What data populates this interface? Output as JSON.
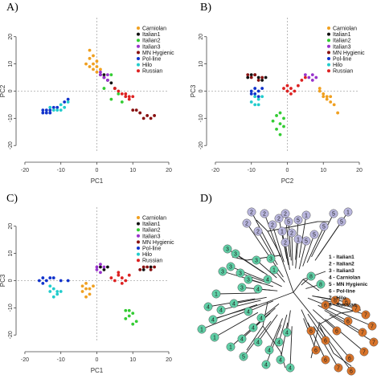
{
  "colors": {
    "Carniolan": "#f0a020",
    "Italian1": "#111111",
    "Italian2": "#33cc33",
    "Italian3": "#9933cc",
    "MN Hygienic": "#881111",
    "Pol-line": "#1133cc",
    "Hilo": "#22cccc",
    "Russian": "#dd2222",
    "tree_lilac": "#b9b6de",
    "tree_teal": "#5fcfa6",
    "tree_orange": "#d9742a"
  },
  "legend_order": [
    "Carniolan",
    "Italian1",
    "Italian2",
    "Italian3",
    "MN Hygienic",
    "Pol-line",
    "Hilo",
    "Russian"
  ],
  "panels": {
    "A": {
      "letter": "A)"
    },
    "B": {
      "letter": "B)"
    },
    "C": {
      "letter": "C)"
    },
    "D": {
      "letter": "D)"
    }
  },
  "chart_data": [
    {
      "panel": "A",
      "type": "scatter",
      "xlabel": "PC1",
      "ylabel": "PC2",
      "xlim": [
        -22,
        20
      ],
      "ylim": [
        -22,
        27
      ],
      "xticks": [
        -20,
        -10,
        0,
        10,
        20
      ],
      "yticks": [
        -20,
        -10,
        0,
        10,
        20
      ],
      "legend_position": "top-right",
      "reference_lines": "dashed at x=0 and y=0",
      "series": [
        {
          "name": "Carniolan",
          "points": [
            [
              -2,
              15
            ],
            [
              -1,
              13
            ],
            [
              -2,
              12
            ],
            [
              0,
              11
            ],
            [
              -1,
              10
            ],
            [
              -2,
              9
            ],
            [
              0,
              9
            ],
            [
              -1,
              8
            ],
            [
              1,
              8
            ],
            [
              0,
              7
            ],
            [
              -3,
              10
            ]
          ]
        },
        {
          "name": "Italian1",
          "points": [
            [
              1,
              6
            ],
            [
              2,
              5
            ],
            [
              3,
              4
            ],
            [
              4,
              3
            ],
            [
              5,
              1
            ],
            [
              2,
              6
            ]
          ]
        },
        {
          "name": "Italian2",
          "points": [
            [
              4,
              6
            ],
            [
              2,
              1
            ],
            [
              6,
              -1
            ],
            [
              4,
              -3
            ],
            [
              7,
              -4
            ]
          ]
        },
        {
          "name": "Italian3",
          "points": [
            [
              1,
              7
            ],
            [
              1,
              6
            ],
            [
              2,
              5
            ],
            [
              3,
              6
            ],
            [
              3,
              4
            ]
          ]
        },
        {
          "name": "MN Hygienic",
          "points": [
            [
              10,
              -7
            ],
            [
              12,
              -8
            ],
            [
              14,
              -9
            ],
            [
              15,
              -10
            ],
            [
              16,
              -9
            ],
            [
              13,
              -10
            ],
            [
              11,
              -7
            ]
          ]
        },
        {
          "name": "Pol-line",
          "points": [
            [
              -14,
              -7
            ],
            [
              -15,
              -8
            ],
            [
              -13,
              -7
            ],
            [
              -12,
              -6
            ],
            [
              -14,
              -8
            ],
            [
              -15,
              -7
            ],
            [
              -11,
              -6
            ],
            [
              -9,
              -4
            ],
            [
              -13,
              -8
            ],
            [
              -8,
              -3
            ]
          ]
        },
        {
          "name": "Hilo",
          "points": [
            [
              -10,
              -5
            ],
            [
              -11,
              -7
            ],
            [
              -12,
              -7
            ],
            [
              -9,
              -6
            ],
            [
              -10,
              -7
            ],
            [
              -8,
              -4
            ],
            [
              -13,
              -6
            ]
          ]
        },
        {
          "name": "Russian",
          "points": [
            [
              6,
              0
            ],
            [
              7,
              -1
            ],
            [
              8,
              -2
            ],
            [
              9,
              -2
            ],
            [
              10,
              -2
            ],
            [
              8,
              -1
            ],
            [
              9,
              -3
            ],
            [
              5,
              1
            ]
          ]
        }
      ]
    },
    {
      "panel": "B",
      "type": "scatter",
      "xlabel": "PC2",
      "ylabel": "PC3",
      "xlim": [
        -22,
        20
      ],
      "ylim": [
        -22,
        27
      ],
      "xticks": [
        -20,
        -10,
        0,
        10,
        20
      ],
      "yticks": [
        -20,
        -10,
        0,
        10,
        20
      ],
      "legend_position": "top-right",
      "reference_lines": "dashed at x=0 and y=0",
      "series": [
        {
          "name": "Carniolan",
          "points": [
            [
              9,
              0
            ],
            [
              10,
              -2
            ],
            [
              11,
              -3
            ],
            [
              12,
              -2
            ],
            [
              13,
              -5
            ],
            [
              14,
              -8
            ],
            [
              10,
              -1
            ],
            [
              11,
              -2
            ],
            [
              12,
              -4
            ],
            [
              9,
              1
            ]
          ]
        },
        {
          "name": "Italian1",
          "points": [
            [
              -10,
              6
            ],
            [
              -8,
              5
            ],
            [
              -6,
              5
            ],
            [
              -11,
              5
            ],
            [
              -7,
              4
            ],
            [
              -9,
              6
            ]
          ]
        },
        {
          "name": "Italian2",
          "points": [
            [
              -3,
              -9
            ],
            [
              -2,
              -12
            ],
            [
              -1,
              -10
            ],
            [
              -3,
              -14
            ],
            [
              -2,
              -16
            ],
            [
              -1,
              -13
            ],
            [
              -4,
              -11
            ],
            [
              -2,
              -8
            ]
          ]
        },
        {
          "name": "Italian3",
          "points": [
            [
              6,
              5
            ],
            [
              7,
              6
            ],
            [
              8,
              5
            ],
            [
              5,
              6
            ],
            [
              7,
              4
            ]
          ]
        },
        {
          "name": "MN Hygienic",
          "points": [
            [
              -9,
              6
            ],
            [
              -7,
              5
            ],
            [
              -11,
              6
            ],
            [
              -8,
              4
            ],
            [
              -10,
              5
            ]
          ]
        },
        {
          "name": "Pol-line",
          "points": [
            [
              -9,
              1
            ],
            [
              -8,
              0
            ],
            [
              -10,
              0
            ],
            [
              -9,
              -1
            ],
            [
              -7,
              1
            ],
            [
              -8,
              -2
            ],
            [
              -10,
              -1
            ]
          ]
        },
        {
          "name": "Hilo",
          "points": [
            [
              -9,
              -2
            ],
            [
              -8,
              -3
            ],
            [
              -10,
              -4
            ],
            [
              -9,
              -5
            ],
            [
              -7,
              -2
            ],
            [
              -8,
              -5
            ]
          ]
        },
        {
          "name": "Russian",
          "points": [
            [
              -1,
              1
            ],
            [
              0,
              0
            ],
            [
              1,
              1
            ],
            [
              2,
              0
            ],
            [
              3,
              2
            ],
            [
              1,
              -1
            ],
            [
              4,
              4
            ],
            [
              5,
              5
            ],
            [
              0,
              2
            ]
          ]
        }
      ]
    },
    {
      "panel": "C",
      "type": "scatter",
      "xlabel": "PC1",
      "ylabel": "PC3",
      "xlim": [
        -22,
        20
      ],
      "ylim": [
        -22,
        27
      ],
      "xticks": [
        -20,
        -10,
        0,
        10,
        20
      ],
      "yticks": [
        -20,
        -10,
        0,
        10,
        20
      ],
      "legend_position": "top-right",
      "reference_lines": "dashed at x=0 and y=0",
      "series": [
        {
          "name": "Carniolan",
          "points": [
            [
              -3,
              -3
            ],
            [
              -2,
              -5
            ],
            [
              -4,
              -4
            ],
            [
              -3,
              -6
            ],
            [
              -2,
              -3
            ],
            [
              -1,
              -2
            ],
            [
              -4,
              -2
            ],
            [
              -3,
              -1
            ]
          ]
        },
        {
          "name": "Italian1",
          "points": [
            [
              1,
              5
            ],
            [
              2,
              4
            ],
            [
              13,
              4
            ],
            [
              15,
              5
            ],
            [
              3,
              5
            ]
          ]
        },
        {
          "name": "Italian2",
          "points": [
            [
              8,
              -11
            ],
            [
              9,
              -13
            ],
            [
              10,
              -12
            ],
            [
              8,
              -14
            ],
            [
              11,
              -15
            ],
            [
              10,
              -16
            ],
            [
              9,
              -11
            ]
          ]
        },
        {
          "name": "Italian3",
          "points": [
            [
              0,
              5
            ],
            [
              1,
              6
            ],
            [
              2,
              5
            ],
            [
              0,
              4
            ],
            [
              1,
              3
            ]
          ]
        },
        {
          "name": "MN Hygienic",
          "points": [
            [
              12,
              4
            ],
            [
              14,
              5
            ],
            [
              15,
              4
            ],
            [
              16,
              5
            ],
            [
              13,
              5
            ]
          ]
        },
        {
          "name": "Pol-line",
          "points": [
            [
              -15,
              1
            ],
            [
              -14,
              0
            ],
            [
              -16,
              0
            ],
            [
              -13,
              1
            ],
            [
              -12,
              1
            ],
            [
              -10,
              0
            ],
            [
              -8,
              0
            ],
            [
              -15,
              -1
            ]
          ]
        },
        {
          "name": "Hilo",
          "points": [
            [
              -13,
              -2
            ],
            [
              -12,
              -3
            ],
            [
              -11,
              -5
            ],
            [
              -12,
              -6
            ],
            [
              -11,
              -4
            ],
            [
              -10,
              -4
            ],
            [
              -13,
              -4
            ]
          ]
        },
        {
          "name": "Russian",
          "points": [
            [
              4,
              1
            ],
            [
              6,
              2
            ],
            [
              7,
              1
            ],
            [
              8,
              0
            ],
            [
              9,
              2
            ],
            [
              5,
              0
            ],
            [
              7,
              -1
            ],
            [
              6,
              3
            ]
          ]
        }
      ]
    }
  ],
  "tree": {
    "legend": [
      "1 - Italian1",
      "2 - Italian2",
      "3 - Italian3",
      "4 - Carniolan",
      "5 - MN Hygienic",
      "6 - Pol-line",
      "7 - Hilo",
      "8 - Russian"
    ],
    "lilac_nodes": [
      "2",
      "2",
      "2",
      "2",
      "2",
      "2",
      "2",
      "1",
      "5",
      "5",
      "1",
      "2",
      "5",
      "5",
      "1",
      "5",
      "5",
      "5",
      "1",
      "2"
    ],
    "teal_nodes": [
      "3",
      "3",
      "3",
      "3",
      "3",
      "3",
      "3",
      "1",
      "4",
      "4",
      "1",
      "4",
      "4",
      "4",
      "4",
      "4",
      "4",
      "4",
      "4",
      "4",
      "4",
      "4",
      "4",
      "1",
      "1",
      "1",
      "5",
      "4",
      "4",
      "8",
      "8",
      "3",
      "3",
      "4"
    ],
    "orange_nodes": [
      "6",
      "6",
      "6",
      "7",
      "7",
      "7",
      "7",
      "7",
      "7",
      "6",
      "6",
      "6",
      "6",
      "6",
      "7",
      "6",
      "6",
      "6"
    ]
  }
}
